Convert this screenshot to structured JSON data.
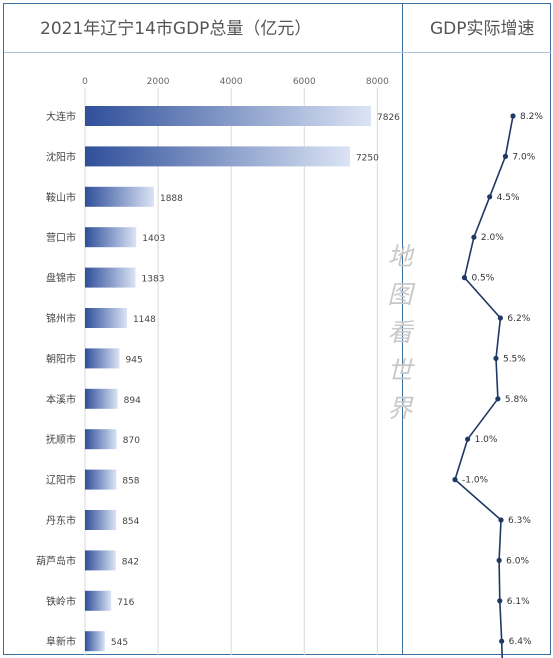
{
  "titles": {
    "left": "2021年辽宁14市GDP总量（亿元）",
    "right": "GDP实际增速"
  },
  "watermark": [
    "地",
    "图",
    "看",
    "世",
    "界"
  ],
  "colors": {
    "bar_dark": "#2f4f9a",
    "bar_light": "#dbe4f5",
    "line": "#1f3864",
    "grid": "#d9d9d9",
    "frame": "#3a6f9e"
  },
  "chart_data": [
    {
      "type": "bar",
      "orientation": "horizontal",
      "title": "2021年辽宁14市GDP总量（亿元）",
      "categories": [
        "大连市",
        "沈阳市",
        "鞍山市",
        "营口市",
        "盘锦市",
        "锦州市",
        "朝阳市",
        "本溪市",
        "抚顺市",
        "辽阳市",
        "丹东市",
        "葫芦岛市",
        "铁岭市",
        "阜新市"
      ],
      "values": [
        7826,
        7250,
        1888,
        1403,
        1383,
        1148,
        945,
        894,
        870,
        858,
        854,
        842,
        716,
        545
      ],
      "xlim": [
        0,
        8000
      ],
      "xticks": [
        0,
        2000,
        4000,
        6000,
        8000
      ],
      "grid": true,
      "axis_position": "top"
    },
    {
      "type": "line",
      "title": "GDP实际增速",
      "categories": [
        "大连市",
        "沈阳市",
        "鞍山市",
        "营口市",
        "盘锦市",
        "锦州市",
        "朝阳市",
        "本溪市",
        "抚顺市",
        "辽阳市",
        "丹东市",
        "葫芦岛市",
        "铁岭市",
        "阜新市"
      ],
      "values": [
        8.2,
        7.0,
        4.5,
        2.0,
        0.5,
        6.2,
        5.5,
        5.8,
        1.0,
        -1.0,
        6.3,
        6.0,
        6.1,
        6.4
      ],
      "labels": [
        "8.2%",
        "7.0%",
        "4.5%",
        "2.0%",
        "0.5%",
        "6.2%",
        "5.5%",
        "5.8%",
        "1.0%",
        "-1.0%",
        "6.3%",
        "6.0%",
        "6.1%",
        "6.4%"
      ],
      "xlim": [
        -1,
        8.2
      ]
    }
  ]
}
